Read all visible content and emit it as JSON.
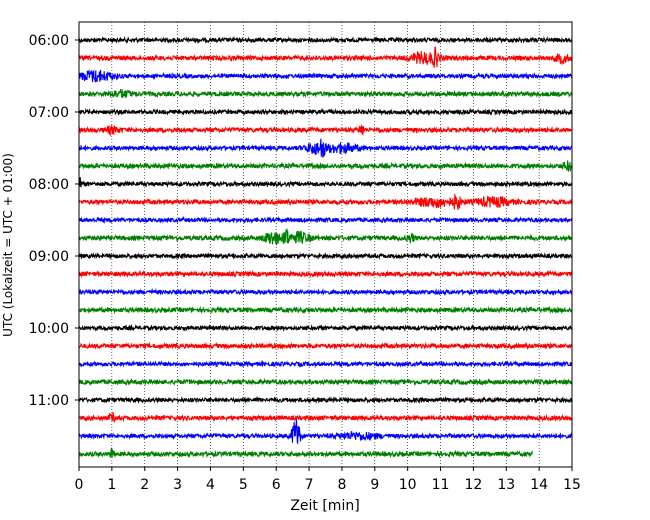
{
  "chart_data": {
    "type": "line",
    "title": "",
    "xlabel": "Zeit  [min]",
    "ylabel": "UTC (Lokalzeit = UTC + 01:00)",
    "xlim": [
      0,
      15
    ],
    "x_ticks": [
      "0",
      "1",
      "2",
      "3",
      "4",
      "5",
      "6",
      "7",
      "8",
      "9",
      "10",
      "11",
      "12",
      "13",
      "14",
      "15"
    ],
    "y_tick_labels": [
      "06:00",
      "07:00",
      "08:00",
      "09:00",
      "10:00",
      "11:00"
    ],
    "grid": "vertical dotted",
    "row_interval_minutes": 15,
    "colors": [
      "#000000",
      "#ff0000",
      "#0000ff",
      "#008000"
    ],
    "traces": [
      {
        "start": "06:00",
        "color": "#000000",
        "end_min": 15,
        "amp": 2.0,
        "events": []
      },
      {
        "start": "06:15",
        "color": "#ff0000",
        "end_min": 15,
        "amp": 2.2,
        "events": [
          [
            10.5,
            5,
            0.4
          ],
          [
            10.85,
            7,
            0.08
          ],
          [
            14.7,
            4,
            0.2
          ]
        ]
      },
      {
        "start": "06:30",
        "color": "#0000ff",
        "end_min": 15,
        "amp": 2.0,
        "events": [
          [
            0.5,
            5,
            0.5
          ]
        ]
      },
      {
        "start": "06:45",
        "color": "#008000",
        "end_min": 15,
        "amp": 2.2,
        "events": [
          [
            1.3,
            3,
            0.3
          ]
        ]
      },
      {
        "start": "07:00",
        "color": "#000000",
        "end_min": 15,
        "amp": 2.0,
        "events": []
      },
      {
        "start": "07:15",
        "color": "#ff0000",
        "end_min": 15,
        "amp": 2.2,
        "events": [
          [
            1.0,
            3,
            0.2
          ],
          [
            8.6,
            6,
            0.06
          ]
        ]
      },
      {
        "start": "07:30",
        "color": "#0000ff",
        "end_min": 15,
        "amp": 2.0,
        "events": [
          [
            7.2,
            5,
            0.3
          ],
          [
            7.4,
            8,
            0.06
          ],
          [
            8.0,
            4,
            0.5
          ]
        ]
      },
      {
        "start": "07:45",
        "color": "#008000",
        "end_min": 15,
        "amp": 2.2,
        "events": [
          [
            14.9,
            4,
            0.15
          ]
        ]
      },
      {
        "start": "08:00",
        "color": "#000000",
        "end_min": 15,
        "amp": 2.0,
        "events": [
          [
            0.02,
            6,
            0.05
          ]
        ]
      },
      {
        "start": "08:15",
        "color": "#ff0000",
        "end_min": 15,
        "amp": 2.2,
        "events": [
          [
            10.8,
            4,
            0.6
          ],
          [
            11.5,
            7,
            0.1
          ],
          [
            12.6,
            4,
            0.5
          ]
        ]
      },
      {
        "start": "08:30",
        "color": "#0000ff",
        "end_min": 15,
        "amp": 2.0,
        "events": []
      },
      {
        "start": "08:45",
        "color": "#008000",
        "end_min": 15,
        "amp": 2.2,
        "events": [
          [
            5.9,
            6,
            0.25
          ],
          [
            6.3,
            9,
            0.07
          ],
          [
            6.7,
            5,
            0.3
          ],
          [
            10.1,
            4,
            0.1
          ]
        ]
      },
      {
        "start": "09:00",
        "color": "#000000",
        "end_min": 15,
        "amp": 2.0,
        "events": []
      },
      {
        "start": "09:15",
        "color": "#ff0000",
        "end_min": 15,
        "amp": 2.2,
        "events": []
      },
      {
        "start": "09:30",
        "color": "#0000ff",
        "end_min": 15,
        "amp": 2.0,
        "events": []
      },
      {
        "start": "09:45",
        "color": "#008000",
        "end_min": 15,
        "amp": 2.2,
        "events": []
      },
      {
        "start": "10:00",
        "color": "#000000",
        "end_min": 15,
        "amp": 2.0,
        "events": []
      },
      {
        "start": "10:15",
        "color": "#ff0000",
        "end_min": 15,
        "amp": 2.2,
        "events": []
      },
      {
        "start": "10:30",
        "color": "#0000ff",
        "end_min": 15,
        "amp": 2.0,
        "events": []
      },
      {
        "start": "10:45",
        "color": "#008000",
        "end_min": 15,
        "amp": 2.2,
        "events": []
      },
      {
        "start": "11:00",
        "color": "#000000",
        "end_min": 15,
        "amp": 2.0,
        "events": []
      },
      {
        "start": "11:15",
        "color": "#ff0000",
        "end_min": 15,
        "amp": 2.2,
        "events": [
          [
            1.0,
            4,
            0.08
          ]
        ]
      },
      {
        "start": "11:30",
        "color": "#0000ff",
        "end_min": 15,
        "amp": 2.0,
        "events": [
          [
            6.6,
            17,
            0.12
          ],
          [
            8.5,
            3,
            0.6
          ]
        ]
      },
      {
        "start": "11:45",
        "color": "#008000",
        "end_min": 13.8,
        "amp": 2.2,
        "events": [
          [
            1.0,
            6,
            0.05
          ]
        ]
      }
    ]
  }
}
